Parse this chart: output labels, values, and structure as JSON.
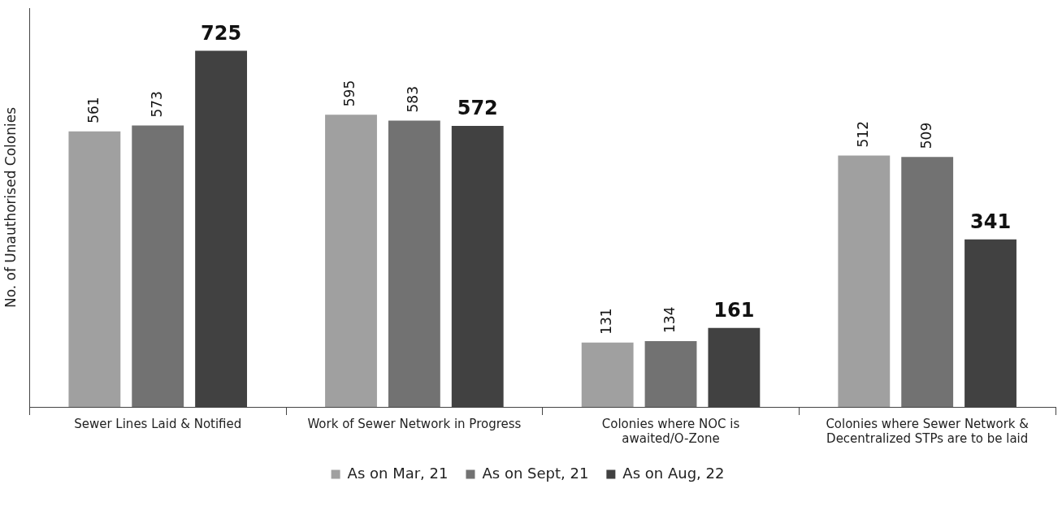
{
  "chart_data": {
    "type": "bar",
    "ylabel": "No. of Unauthorised Colonies",
    "categories": [
      "Sewer Lines Laid & Notified",
      "Work of Sewer Network in Progress",
      "Colonies where NOC is awaited/O-Zone",
      "Colonies where Sewer Network & Decentralized STPs are to be laid"
    ],
    "series": [
      {
        "name": "As on Mar, 21",
        "color": "#a0a0a0",
        "values": [
          561,
          595,
          131,
          512
        ]
      },
      {
        "name": "As on Sept, 21",
        "color": "#727272",
        "values": [
          573,
          583,
          134,
          509
        ]
      },
      {
        "name": "As on Aug, 22",
        "color": "#414141",
        "values": [
          725,
          572,
          161,
          341
        ]
      }
    ],
    "data_labels": true,
    "legend": "bottom",
    "grid": false
  }
}
